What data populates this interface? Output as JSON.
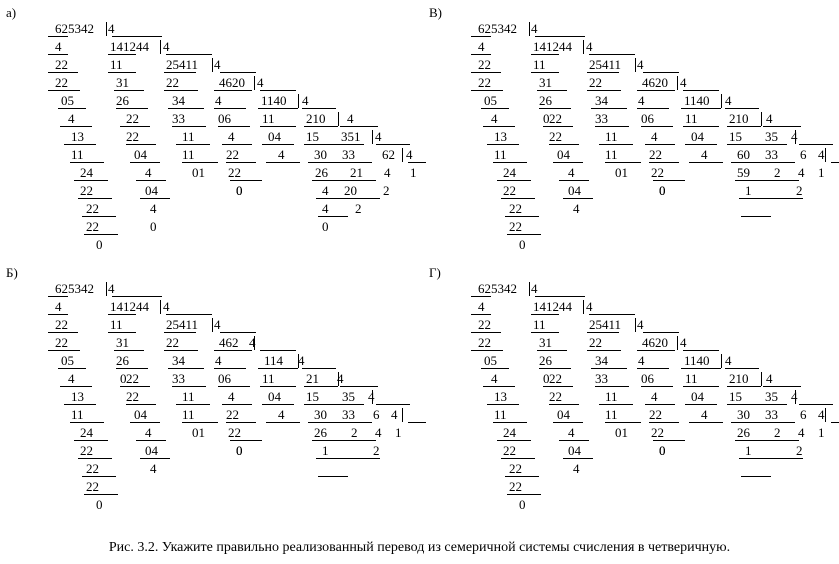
{
  "caption": "Рис. 3.2. Укажите правильно реализованный перевод из семеричной системы счисления в четверичную.",
  "panels": [
    {
      "label": "а)",
      "texts": [
        "625342",
        "4",
        "4",
        "141244",
        "4",
        "22",
        "11",
        "25411",
        "4",
        "22",
        "31",
        "22",
        "4620",
        "4",
        "05",
        "26",
        "34",
        "4",
        "1140",
        "4",
        "4",
        "22",
        "33",
        "06",
        "11",
        "210",
        "4",
        "13",
        "22",
        "11",
        "4",
        "04",
        "15",
        "351",
        "4",
        "11",
        "04",
        "11",
        "22",
        "4",
        "30",
        "33",
        "62",
        "4",
        "24",
        "4",
        "01",
        "22",
        "0",
        "26",
        "21",
        "4",
        "1",
        "22",
        "04",
        "0",
        "4",
        "20",
        "2",
        "22",
        "4",
        "4",
        "2",
        "22",
        "0",
        "0",
        "0"
      ]
    },
    {
      "label": "В)",
      "texts": [
        "625342",
        "4",
        "4",
        "141244",
        "4",
        "22",
        "11",
        "25411",
        "4",
        "22",
        "31",
        "22",
        "4620",
        "4",
        "05",
        "26",
        "34",
        "4",
        "1140",
        "4",
        "4",
        "22",
        "33",
        "06",
        "11",
        "210",
        "4",
        "13",
        "22",
        "11",
        "4",
        "04",
        "15",
        "35",
        "4",
        "11",
        "04",
        "11",
        "22",
        "4",
        "60",
        "33",
        "6",
        "4",
        "24",
        "4",
        "01",
        "22",
        "0",
        "59",
        "2",
        "4",
        "1",
        "22",
        "04",
        "0",
        "1",
        "2",
        "22",
        "4",
        "22",
        "0",
        "0"
      ]
    },
    {
      "label": "Б)",
      "texts": [
        "625342",
        "4",
        "4",
        "141244",
        "4",
        "22",
        "11",
        "25411",
        "4",
        "22",
        "31",
        "22",
        "462",
        "4",
        "05",
        "26",
        "34",
        "4",
        "114",
        "4",
        "4",
        "22",
        "33",
        "06",
        "11",
        "21",
        "4",
        "13",
        "22",
        "11",
        "4",
        "04",
        "15",
        "35",
        "4",
        "11",
        "04",
        "11",
        "22",
        "4",
        "30",
        "33",
        "6",
        "4",
        "24",
        "4",
        "01",
        "22",
        "0",
        "26",
        "2",
        "4",
        "1",
        "22",
        "04",
        "0",
        "1",
        "2",
        "22",
        "4",
        "22",
        "0",
        "0"
      ]
    },
    {
      "label": "Г)",
      "texts": [
        "625342",
        "4",
        "4",
        "141244",
        "4",
        "22",
        "11",
        "25411",
        "4",
        "22",
        "31",
        "22",
        "4620",
        "4",
        "05",
        "26",
        "34",
        "4",
        "1140",
        "4",
        "4",
        "22",
        "33",
        "06",
        "11",
        "210",
        "4",
        "13",
        "22",
        "11",
        "4",
        "04",
        "15",
        "35",
        "4",
        "11",
        "04",
        "11",
        "22",
        "4",
        "30",
        "33",
        "6",
        "4",
        "24",
        "4",
        "01",
        "22",
        "0",
        "26",
        "2",
        "4",
        "1",
        "22",
        "04",
        "0",
        "1",
        "2",
        "22",
        "4",
        "22",
        "0",
        "0"
      ]
    }
  ]
}
